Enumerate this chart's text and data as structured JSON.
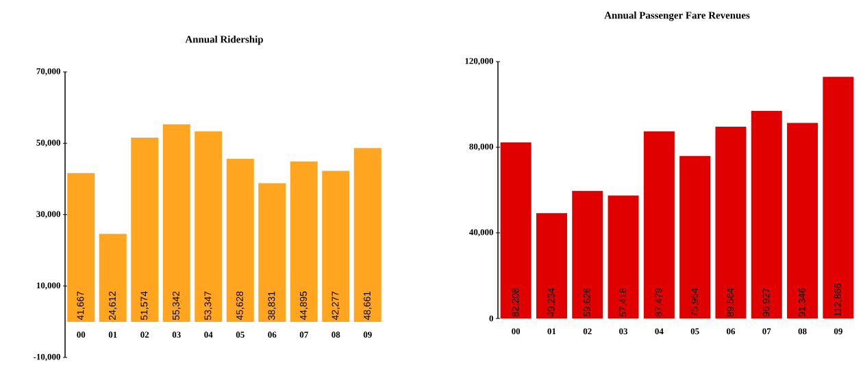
{
  "chart_data": [
    {
      "type": "bar",
      "title": "Annual Ridership",
      "categories": [
        "00",
        "01",
        "02",
        "03",
        "04",
        "05",
        "06",
        "07",
        "08",
        "09"
      ],
      "values": [
        41667,
        24612,
        51574,
        55342,
        53347,
        45628,
        38831,
        44895,
        42277,
        48661
      ],
      "color": "#ffa520",
      "value_labels": [
        "41,667",
        "24,612",
        "51,574",
        "55,342",
        "53,347",
        "45,628",
        "38,831",
        "44,895",
        "42,277",
        "48,661"
      ],
      "ylim": [
        -10000,
        70000
      ],
      "yticks": [
        {
          "value": -10000,
          "label": "-10,000"
        },
        {
          "value": 10000,
          "label": "10,000"
        },
        {
          "value": 30000,
          "label": "30,000"
        },
        {
          "value": 50000,
          "label": "50,000"
        },
        {
          "value": 70000,
          "label": "70,000"
        }
      ]
    },
    {
      "type": "bar",
      "title": "Annual Passenger Fare Revenues",
      "categories": [
        "00",
        "01",
        "02",
        "03",
        "04",
        "05",
        "06",
        "07",
        "08",
        "09"
      ],
      "values": [
        82208,
        49234,
        59626,
        57418,
        87479,
        75954,
        89564,
        96927,
        91346,
        112866
      ],
      "color": "#e00000",
      "value_labels": [
        "82,208",
        "49,234",
        "59,626",
        "57,418",
        "87,479",
        "75,954",
        "89,564",
        "96,927",
        "91,346",
        "112,866"
      ],
      "ylim": [
        0,
        120000
      ],
      "yticks": [
        0,
        {
          "value": 40000,
          "label": "40,000"
        },
        {
          "value": 80000,
          "label": "80,000"
        },
        {
          "value": 120000,
          "label": "120,000"
        }
      ]
    }
  ]
}
